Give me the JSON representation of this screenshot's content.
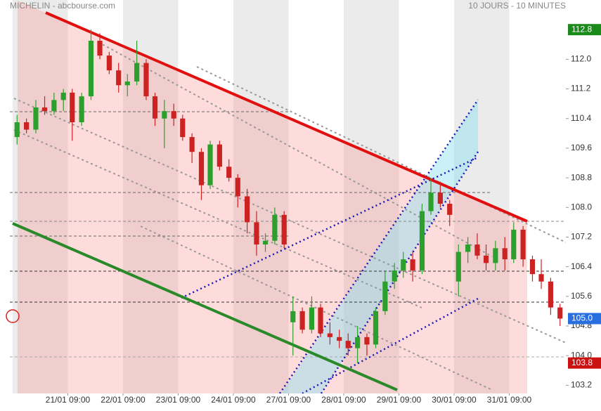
{
  "header": {
    "left": "MICHELIN - abcbourse.com",
    "right": "10 JOURS - 10 MINUTES"
  },
  "chart_data": {
    "type": "candlestick",
    "x": [
      0.08,
      0.25,
      0.42,
      0.58,
      0.75,
      0.92,
      1.08,
      1.25,
      1.42,
      1.58,
      1.75,
      1.92,
      2.08,
      2.25,
      2.42,
      2.58,
      2.75,
      2.92,
      3.08,
      3.25,
      3.42,
      3.58,
      3.75,
      3.92,
      4.08,
      4.25,
      4.42,
      4.58,
      4.75,
      4.92,
      5.08,
      5.25,
      5.42,
      5.58,
      5.75,
      5.92,
      6.08,
      6.25,
      6.42,
      6.58,
      6.75,
      6.92,
      7.08,
      7.25,
      7.42,
      7.58,
      7.75,
      7.92,
      8.08,
      8.25,
      8.42,
      8.58,
      8.75,
      8.92,
      9.08,
      9.25,
      9.42,
      9.58,
      9.75,
      9.92
    ],
    "open": [
      109.9,
      110.3,
      110.1,
      110.7,
      110.6,
      110.9,
      111.1,
      110.3,
      111.0,
      112.5,
      112.1,
      111.7,
      111.3,
      111.4,
      111.9,
      111.0,
      110.4,
      110.6,
      110.4,
      109.9,
      109.5,
      108.6,
      109.7,
      109.1,
      108.8,
      108.3,
      107.6,
      107.0,
      107.1,
      107.8,
      104.9,
      105.2,
      104.7,
      105.3,
      104.6,
      104.5,
      104.4,
      104.2,
      104.5,
      104.3,
      105.2,
      106.0,
      106.3,
      106.6,
      106.3,
      107.9,
      108.4,
      108.1,
      106.0,
      106.8,
      107.0,
      106.7,
      106.5,
      106.9,
      106.6,
      107.4,
      106.6,
      106.2,
      106.0,
      105.3
    ],
    "high": [
      110.5,
      110.4,
      110.9,
      111.0,
      111.1,
      111.2,
      111.2,
      111.1,
      112.8,
      112.7,
      112.2,
      111.9,
      111.6,
      112.5,
      112.0,
      111.1,
      110.9,
      110.8,
      110.5,
      110.0,
      109.6,
      109.8,
      109.8,
      109.3,
      108.9,
      108.5,
      107.9,
      107.3,
      108.0,
      107.9,
      105.6,
      105.3,
      105.6,
      105.4,
      104.9,
      104.7,
      104.6,
      104.8,
      104.6,
      105.3,
      106.3,
      106.5,
      106.8,
      106.8,
      108.1,
      108.8,
      108.7,
      108.2,
      107.0,
      107.2,
      107.3,
      107.0,
      107.1,
      107.2,
      107.6,
      107.5,
      106.7,
      106.6,
      106.1,
      105.4
    ],
    "low": [
      109.7,
      110.0,
      110.0,
      110.5,
      110.5,
      110.6,
      109.8,
      110.2,
      110.9,
      112.0,
      111.6,
      111.1,
      111.0,
      111.3,
      110.9,
      110.2,
      109.6,
      110.2,
      109.8,
      109.2,
      108.2,
      108.5,
      109.0,
      108.7,
      108.0,
      107.3,
      106.7,
      106.8,
      107.0,
      106.9,
      104.0,
      104.6,
      104.6,
      104.5,
      104.3,
      104.2,
      104.0,
      103.8,
      104.0,
      104.2,
      105.1,
      105.8,
      106.1,
      106.0,
      106.2,
      107.8,
      108.0,
      107.5,
      105.6,
      106.5,
      106.6,
      106.3,
      106.3,
      106.3,
      106.5,
      106.4,
      106.0,
      105.8,
      105.1,
      104.8
    ],
    "close": [
      110.3,
      110.1,
      110.7,
      110.6,
      110.9,
      111.1,
      110.3,
      111.0,
      112.5,
      112.1,
      111.7,
      111.3,
      111.4,
      111.9,
      111.0,
      110.4,
      110.6,
      110.4,
      109.9,
      109.5,
      108.6,
      109.7,
      109.1,
      108.8,
      108.3,
      107.6,
      107.0,
      107.1,
      107.8,
      107.0,
      105.2,
      104.7,
      105.3,
      104.6,
      104.5,
      104.4,
      104.2,
      104.5,
      104.3,
      105.2,
      106.0,
      106.3,
      106.6,
      106.3,
      107.9,
      108.4,
      108.1,
      107.8,
      106.8,
      107.0,
      106.7,
      106.5,
      106.9,
      106.6,
      107.4,
      106.6,
      106.2,
      106.0,
      105.3,
      105.0
    ],
    "up_color": "#2ca02c",
    "down_color": "#cc2222",
    "xlim": [
      0,
      10
    ],
    "xticks": [
      {
        "value": 1,
        "label": "21/01 09:00"
      },
      {
        "value": 2,
        "label": "22/01 09:00"
      },
      {
        "value": 3,
        "label": "23/01 09:00"
      },
      {
        "value": 4,
        "label": "24/01 09:00"
      },
      {
        "value": 5,
        "label": "27/01 09:00"
      },
      {
        "value": 6,
        "label": "28/01 09:00"
      },
      {
        "value": 7,
        "label": "29/01 09:00"
      },
      {
        "value": 8,
        "label": "30/01 09:00"
      },
      {
        "value": 9,
        "label": "31/01 09:00"
      }
    ],
    "ylim": [
      102.6,
      113.6
    ],
    "yticks": [
      103.2,
      {
        "value": 104,
        "label": "104.0"
      },
      104.8,
      105.6,
      106.4,
      107.2,
      {
        "value": 108,
        "label": "108.0"
      },
      108.8,
      109.6,
      110.4,
      111.2,
      {
        "value": 112,
        "label": "112.0"
      }
    ],
    "markers": [
      {
        "value": 112.8,
        "label": "112.8",
        "color": "#1a8a1a"
      },
      {
        "value": 105,
        "label": "105.0",
        "color": "#2a6fe0"
      },
      {
        "value": 103.8,
        "label": "103.8",
        "color": "#cc1111"
      }
    ]
  }
}
